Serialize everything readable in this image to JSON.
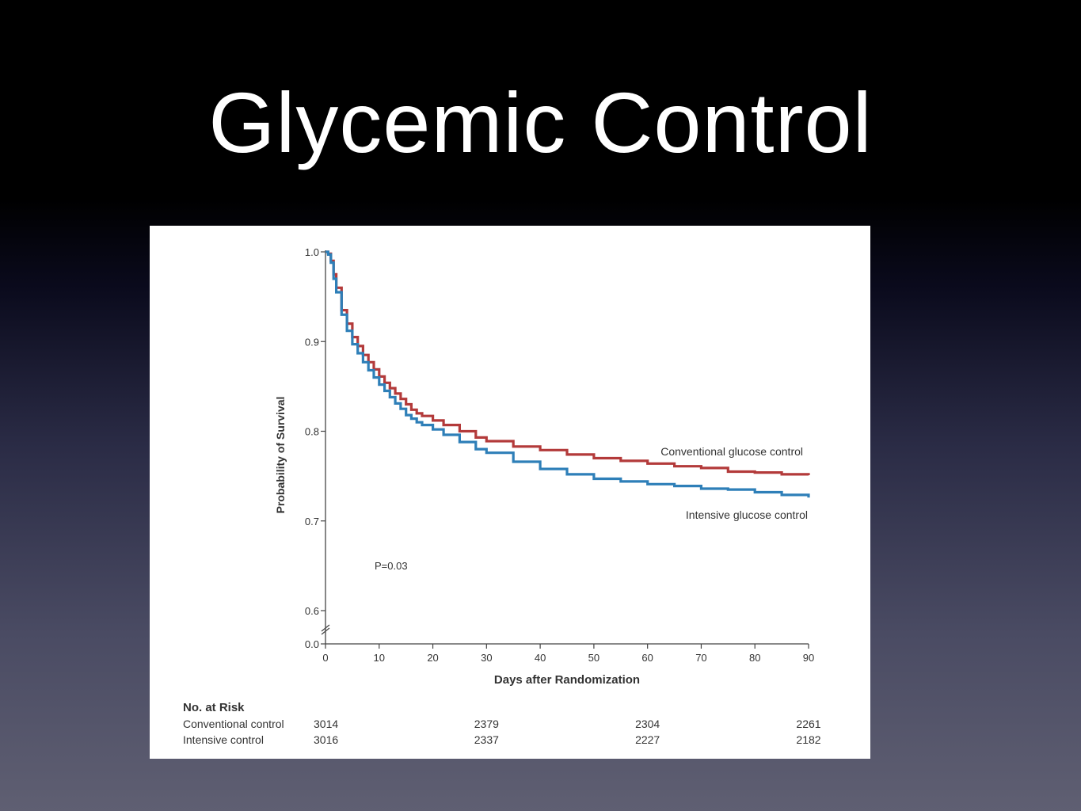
{
  "slide": {
    "title": "Glycemic Control"
  },
  "chart_data": {
    "type": "line",
    "title": "",
    "xlabel": "Days after Randomization",
    "ylabel": "Probability of Survival",
    "xlim": [
      0,
      90
    ],
    "ylim": [
      0.0,
      1.0
    ],
    "y_axis_break": true,
    "x_ticks": [
      0,
      10,
      20,
      30,
      40,
      50,
      60,
      70,
      80,
      90
    ],
    "x_tick_labels": [
      "0",
      "10",
      "20",
      "30",
      "40",
      "50",
      "60",
      "70",
      "80",
      "90"
    ],
    "y_ticks": [
      0.0,
      0.6,
      0.7,
      0.8,
      0.9,
      1.0
    ],
    "y_tick_labels": [
      "0.0",
      "0.6",
      "0.7",
      "0.8",
      "0.9",
      "1.0"
    ],
    "grid": false,
    "annotation": "P=0.03",
    "series": [
      {
        "name": "Conventional glucose control",
        "color": "#b33a3a",
        "step": true,
        "x": [
          0,
          0.5,
          1,
          1.5,
          2,
          3,
          4,
          5,
          6,
          7,
          8,
          9,
          10,
          11,
          12,
          13,
          14,
          15,
          16,
          17,
          18,
          20,
          22,
          25,
          28,
          30,
          35,
          40,
          45,
          50,
          55,
          60,
          65,
          70,
          75,
          80,
          85,
          90
        ],
        "y": [
          1.0,
          0.998,
          0.99,
          0.975,
          0.96,
          0.935,
          0.92,
          0.905,
          0.895,
          0.885,
          0.877,
          0.869,
          0.861,
          0.854,
          0.848,
          0.842,
          0.836,
          0.83,
          0.824,
          0.82,
          0.817,
          0.812,
          0.807,
          0.8,
          0.793,
          0.789,
          0.783,
          0.779,
          0.774,
          0.77,
          0.767,
          0.764,
          0.761,
          0.759,
          0.755,
          0.754,
          0.752,
          0.751
        ]
      },
      {
        "name": "Intensive glucose control",
        "color": "#2e7fb8",
        "step": true,
        "x": [
          0,
          0.5,
          1,
          1.5,
          2,
          3,
          4,
          5,
          6,
          7,
          8,
          9,
          10,
          11,
          12,
          13,
          14,
          15,
          16,
          17,
          18,
          20,
          22,
          25,
          28,
          30,
          35,
          40,
          45,
          50,
          55,
          60,
          65,
          70,
          75,
          80,
          85,
          90
        ],
        "y": [
          1.0,
          0.997,
          0.988,
          0.97,
          0.955,
          0.93,
          0.912,
          0.897,
          0.887,
          0.877,
          0.868,
          0.86,
          0.852,
          0.845,
          0.838,
          0.831,
          0.825,
          0.818,
          0.814,
          0.81,
          0.807,
          0.802,
          0.796,
          0.788,
          0.78,
          0.776,
          0.766,
          0.758,
          0.752,
          0.747,
          0.744,
          0.741,
          0.739,
          0.736,
          0.735,
          0.732,
          0.729,
          0.726
        ]
      }
    ],
    "at_risk": {
      "header": "No. at Risk",
      "rows": [
        {
          "label": "Conventional control",
          "values": [
            "3014",
            "2379",
            "2304",
            "2261"
          ]
        },
        {
          "label": "Intensive control",
          "values": [
            "3016",
            "2337",
            "2227",
            "2182"
          ]
        }
      ]
    }
  }
}
